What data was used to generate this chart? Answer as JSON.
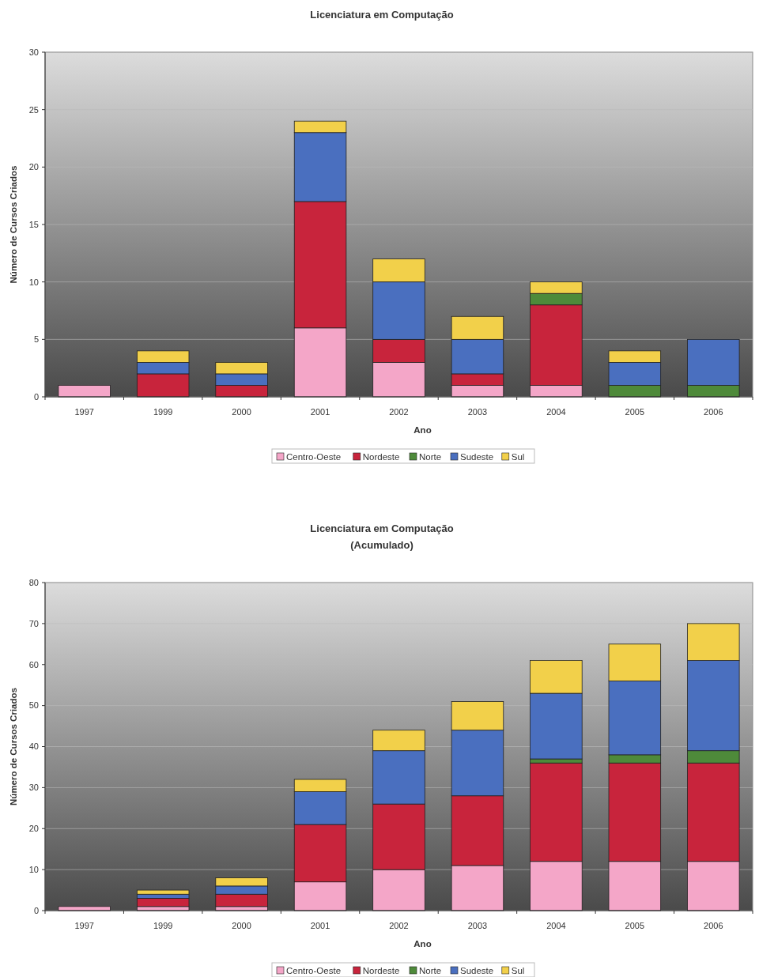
{
  "chart_data": [
    {
      "type": "bar",
      "title": "Licenciatura em Computação",
      "xlabel": "Ano",
      "ylabel": "Número de Cursos Criados",
      "categories": [
        "1997",
        "1999",
        "2000",
        "2001",
        "2002",
        "2003",
        "2004",
        "2005",
        "2006"
      ],
      "stacked": true,
      "ylim": [
        0,
        30
      ],
      "yticks": [
        0,
        5,
        10,
        15,
        20,
        25,
        30
      ],
      "grid": "y",
      "legend": "bottom",
      "series": [
        {
          "name": "Centro-Oeste",
          "color": "#f4a6c8",
          "values": [
            1,
            0,
            0,
            6,
            3,
            1,
            1,
            0,
            0
          ]
        },
        {
          "name": "Nordeste",
          "color": "#c8243c",
          "values": [
            0,
            2,
            1,
            11,
            2,
            1,
            7,
            0,
            0
          ]
        },
        {
          "name": "Norte",
          "color": "#4e8a3a",
          "values": [
            0,
            0,
            0,
            0,
            0,
            0,
            1,
            1,
            1
          ]
        },
        {
          "name": "Sudeste",
          "color": "#4a6fbf",
          "values": [
            0,
            1,
            1,
            6,
            5,
            3,
            0,
            2,
            4
          ]
        },
        {
          "name": "Sul",
          "color": "#f2d04a",
          "values": [
            0,
            1,
            1,
            1,
            2,
            2,
            1,
            1,
            0
          ]
        }
      ]
    },
    {
      "type": "bar",
      "title": "Licenciatura em Computação",
      "subtitle": "(Acumulado)",
      "xlabel": "Ano",
      "ylabel": "Número de Cursos Criados",
      "categories": [
        "1997",
        "1999",
        "2000",
        "2001",
        "2002",
        "2003",
        "2004",
        "2005",
        "2006"
      ],
      "stacked": true,
      "ylim": [
        0,
        80
      ],
      "yticks": [
        0,
        10,
        20,
        30,
        40,
        50,
        60,
        70,
        80
      ],
      "grid": "y",
      "legend": "bottom",
      "series": [
        {
          "name": "Centro-Oeste",
          "color": "#f4a6c8",
          "values": [
            1,
            1,
            1,
            7,
            10,
            11,
            12,
            12,
            12
          ]
        },
        {
          "name": "Nordeste",
          "color": "#c8243c",
          "values": [
            0,
            2,
            3,
            14,
            16,
            17,
            24,
            24,
            24
          ]
        },
        {
          "name": "Norte",
          "color": "#4e8a3a",
          "values": [
            0,
            0,
            0,
            0,
            0,
            0,
            1,
            2,
            3
          ]
        },
        {
          "name": "Sudeste",
          "color": "#4a6fbf",
          "values": [
            0,
            1,
            2,
            8,
            13,
            16,
            16,
            18,
            22
          ]
        },
        {
          "name": "Sul",
          "color": "#f2d04a",
          "values": [
            0,
            1,
            2,
            3,
            5,
            7,
            8,
            9,
            9
          ]
        }
      ]
    }
  ]
}
